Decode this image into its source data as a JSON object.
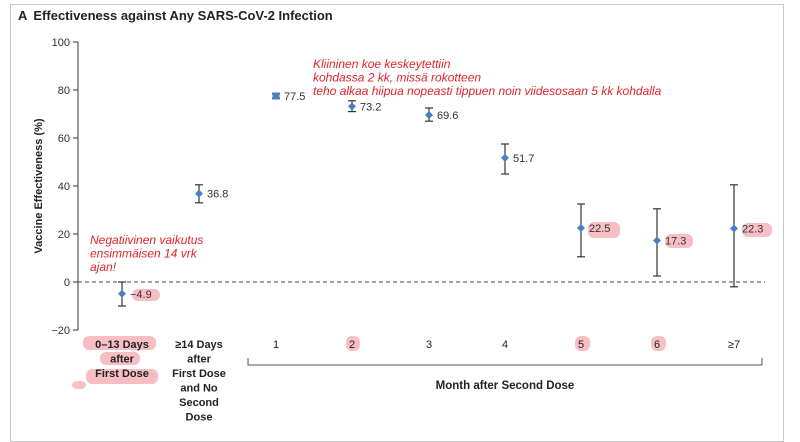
{
  "panel_letter": "A",
  "title": "Effectiveness against Any SARS-CoV-2 Infection",
  "colors": {
    "point": "#4a7fc8",
    "whisker": "#333333",
    "annotation": "#e0242b",
    "highlight": "#f4aab0"
  },
  "chart_data": {
    "type": "scatter",
    "title": "Effectiveness against Any SARS-CoV-2 Infection",
    "ylabel": "Vaccine Effectiveness (%)",
    "xlabel": "Month after Second Dose",
    "ylim": [
      -20,
      100
    ],
    "yticks": [
      "100",
      "80",
      "60",
      "40",
      "20",
      "0",
      "−20"
    ],
    "reference_line": 0,
    "grid": false,
    "categories": [
      "0–13 Days after First Dose",
      "≥14 Days after First Dose and No Second Dose",
      "1",
      "2",
      "3",
      "4",
      "5",
      "6",
      "≥7"
    ],
    "category_lines": [
      [
        "0–13 Days",
        "after",
        "First Dose"
      ],
      [
        "≥14 Days",
        "after",
        "First Dose",
        "and No",
        "Second",
        "Dose"
      ],
      [
        "1"
      ],
      [
        "2"
      ],
      [
        "3"
      ],
      [
        "4"
      ],
      [
        "5"
      ],
      [
        "6"
      ],
      [
        "≥7"
      ]
    ],
    "points": [
      {
        "x": "0–13 Days after First Dose",
        "value": -4.9,
        "low": -10,
        "high": 0,
        "label": "−4.9"
      },
      {
        "x": "≥14 Days after First Dose and No Second Dose",
        "value": 36.8,
        "low": 33,
        "high": 40.5,
        "label": "36.8"
      },
      {
        "x": "1",
        "value": 77.5,
        "low": 76.5,
        "high": 78.5,
        "label": "77.5"
      },
      {
        "x": "2",
        "value": 73.2,
        "low": 71,
        "high": 75.5,
        "label": "73.2"
      },
      {
        "x": "3",
        "value": 69.6,
        "low": 67,
        "high": 72.5,
        "label": "69.6"
      },
      {
        "x": "4",
        "value": 51.7,
        "low": 45,
        "high": 57.5,
        "label": "51.7"
      },
      {
        "x": "5",
        "value": 22.5,
        "low": 10.5,
        "high": 32.5,
        "label": "22.5"
      },
      {
        "x": "6",
        "value": 17.3,
        "low": 2.5,
        "high": 30.5,
        "label": "17.3"
      },
      {
        "x": "≥7",
        "value": 22.3,
        "low": -2,
        "high": 40.5,
        "label": "22.3"
      }
    ],
    "annotations": [
      {
        "lines": [
          "Kliininen koe keskeytettiin",
          "kohdassa 2 kk, missä rokotteen",
          "teho alkaa hiipua nopeasti tippuen noin viidesosaan 5 kk kohdalla"
        ]
      },
      {
        "lines": [
          "Negatiivinen vaikutus",
          "ensimmäisen 14 vrk",
          "ajan!"
        ]
      }
    ]
  }
}
